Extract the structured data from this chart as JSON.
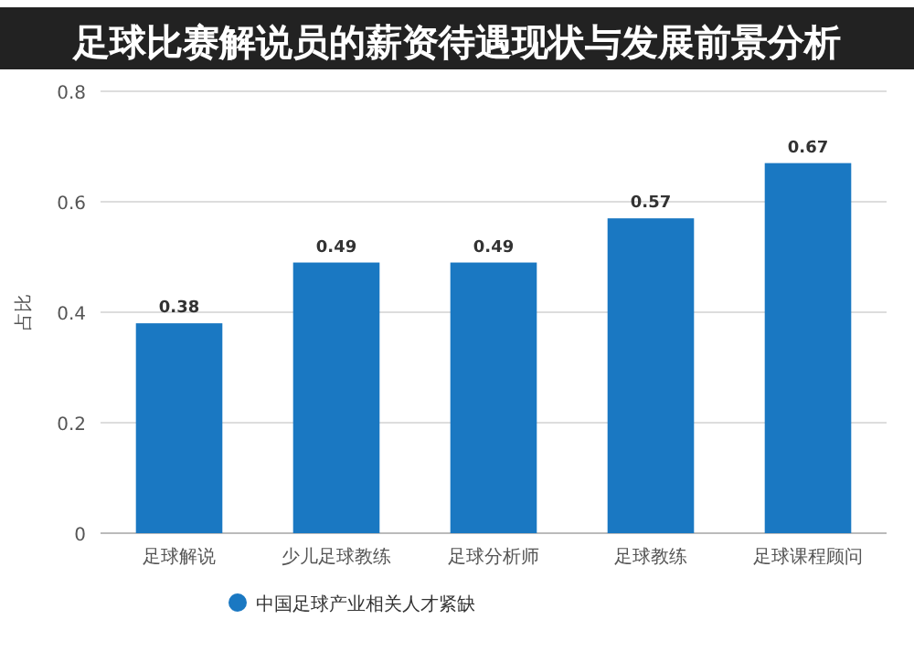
{
  "chart_data": {
    "type": "bar",
    "title": "足球比赛解说员的薪资待遇现状与发展前景分析",
    "ylabel": "占比",
    "categories": [
      "足球解说",
      "少儿足球教练",
      "足球分析师",
      "足球教练",
      "足球课程顾问"
    ],
    "series": [
      {
        "name": "中国足球产业相关人才紧缺",
        "color": "#1a78c2",
        "values": [
          0.38,
          0.49,
          0.49,
          0.57,
          0.67
        ]
      }
    ],
    "data_labels": true,
    "ylim": [
      0,
      0.8
    ],
    "yticks": [
      0,
      0.2,
      0.4,
      0.6,
      0.8
    ],
    "grid": "y",
    "legend": "bottom"
  }
}
